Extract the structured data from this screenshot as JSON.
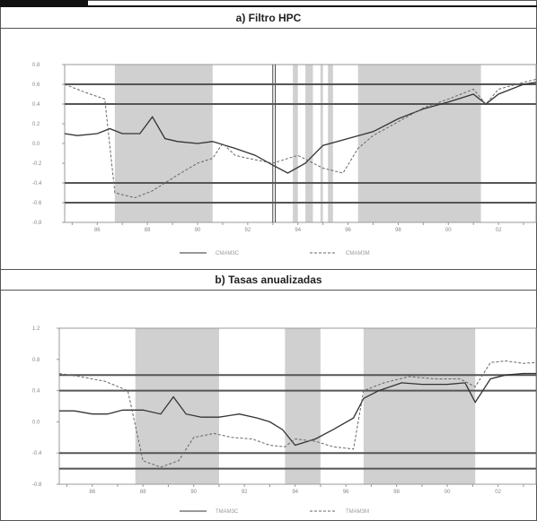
{
  "page": {},
  "chart_data": [
    {
      "type": "line",
      "title": "a) Filtro HPC",
      "x_ticks": [
        "86",
        "88",
        "90",
        "92",
        "94",
        "96",
        "98",
        "00",
        "02"
      ],
      "y_ticks": [
        "0.8",
        "0.6",
        "0.4",
        "0.2",
        "0.0",
        "-0.2",
        "-0.4",
        "-0.6",
        "-0.8"
      ],
      "ylim": [
        -0.8,
        0.8
      ],
      "xlim": [
        1984.7,
        2003.5
      ],
      "grid": false,
      "legend_position": "bottom-center",
      "reference_lines": [
        0.6,
        0.4,
        -0.4,
        -0.6
      ],
      "shaded_regions": [
        [
          1986.7,
          1990.6
        ],
        [
          1993.8,
          1994.0
        ],
        [
          1994.3,
          1994.6
        ],
        [
          1994.9,
          1995.0
        ],
        [
          1995.2,
          1995.4
        ],
        [
          1996.4,
          2001.3
        ]
      ],
      "vertical_lines": [
        1993.0,
        1993.1
      ],
      "series": [
        {
          "name": "CMAM3C",
          "style": "solid",
          "x": [
            1984.7,
            1985.2,
            1986.0,
            1986.5,
            1987.0,
            1987.7,
            1988.2,
            1988.7,
            1989.2,
            1990.0,
            1990.6,
            1991.5,
            1992.3,
            1993.0,
            1993.6,
            1994.3,
            1995.0,
            1996.0,
            1997.0,
            1998.0,
            1999.0,
            2000.0,
            2001.0,
            2001.5,
            2002.0,
            2003.0,
            2003.5
          ],
          "y": [
            0.1,
            0.08,
            0.1,
            0.15,
            0.1,
            0.1,
            0.27,
            0.05,
            0.02,
            0.0,
            0.02,
            -0.05,
            -0.12,
            -0.22,
            -0.3,
            -0.2,
            -0.02,
            0.05,
            0.12,
            0.25,
            0.35,
            0.42,
            0.5,
            0.4,
            0.5,
            0.6,
            0.62
          ]
        },
        {
          "name": "CMAM3M",
          "style": "dashed",
          "x": [
            1984.7,
            1985.5,
            1986.3,
            1986.7,
            1987.5,
            1988.2,
            1989.2,
            1990.0,
            1990.6,
            1991.0,
            1991.5,
            1992.0,
            1993.0,
            1994.0,
            1995.0,
            1995.8,
            1996.4,
            1997.0,
            1998.0,
            1999.0,
            2000.0,
            2001.0,
            2001.5,
            2002.0,
            2003.0,
            2003.5
          ],
          "y": [
            0.6,
            0.52,
            0.45,
            -0.5,
            -0.55,
            -0.48,
            -0.32,
            -0.2,
            -0.15,
            0.0,
            -0.12,
            -0.15,
            -0.2,
            -0.12,
            -0.25,
            -0.3,
            -0.05,
            0.08,
            0.22,
            0.36,
            0.45,
            0.55,
            0.4,
            0.55,
            0.62,
            0.65
          ]
        }
      ]
    },
    {
      "type": "line",
      "title": "b) Tasas anualizadas",
      "x_ticks": [
        "86",
        "88",
        "90",
        "92",
        "94",
        "96",
        "98",
        "00",
        "02"
      ],
      "y_ticks": [
        "1.2",
        "0.8",
        "0.4",
        "0.0",
        "-0.4",
        "-0.8"
      ],
      "ylim": [
        -0.8,
        1.2
      ],
      "xlim": [
        1984.7,
        2003.5
      ],
      "grid": false,
      "legend_position": "bottom-center",
      "reference_lines": [
        0.6,
        0.4,
        -0.4,
        -0.6
      ],
      "shaded_regions": [
        [
          1987.7,
          1991.0
        ],
        [
          1993.6,
          1995.0
        ],
        [
          1996.7,
          2001.1
        ]
      ],
      "vertical_lines": [],
      "series": [
        {
          "name": "TMAM3C",
          "style": "solid",
          "x": [
            1984.7,
            1985.3,
            1986.0,
            1986.6,
            1987.2,
            1988.0,
            1988.7,
            1989.2,
            1989.7,
            1990.3,
            1991.0,
            1991.8,
            1992.5,
            1993.0,
            1993.5,
            1994.0,
            1994.8,
            1995.5,
            1996.3,
            1996.7,
            1997.3,
            1998.2,
            1999.0,
            2000.0,
            2000.7,
            2001.1,
            2001.7,
            2002.3,
            2003.0,
            2003.5
          ],
          "y": [
            0.14,
            0.14,
            0.1,
            0.1,
            0.15,
            0.15,
            0.1,
            0.32,
            0.1,
            0.06,
            0.06,
            0.1,
            0.05,
            0.0,
            -0.1,
            -0.3,
            -0.22,
            -0.1,
            0.05,
            0.3,
            0.4,
            0.5,
            0.48,
            0.48,
            0.5,
            0.25,
            0.55,
            0.6,
            0.62,
            0.62
          ]
        },
        {
          "name": "TMAM3M",
          "style": "dashed",
          "x": [
            1984.7,
            1985.5,
            1986.5,
            1987.4,
            1988.0,
            1988.7,
            1989.4,
            1990.0,
            1990.8,
            1991.5,
            1992.3,
            1993.0,
            1993.6,
            1994.0,
            1994.8,
            1995.5,
            1996.3,
            1996.7,
            1997.5,
            1998.5,
            1999.5,
            2000.5,
            2001.1,
            2001.7,
            2002.3,
            2003.0,
            2003.5
          ],
          "y": [
            0.62,
            0.58,
            0.52,
            0.4,
            -0.5,
            -0.58,
            -0.5,
            -0.2,
            -0.15,
            -0.2,
            -0.22,
            -0.3,
            -0.32,
            -0.22,
            -0.25,
            -0.32,
            -0.35,
            0.4,
            0.5,
            0.58,
            0.55,
            0.55,
            0.45,
            0.76,
            0.78,
            0.75,
            0.76
          ]
        }
      ]
    }
  ]
}
